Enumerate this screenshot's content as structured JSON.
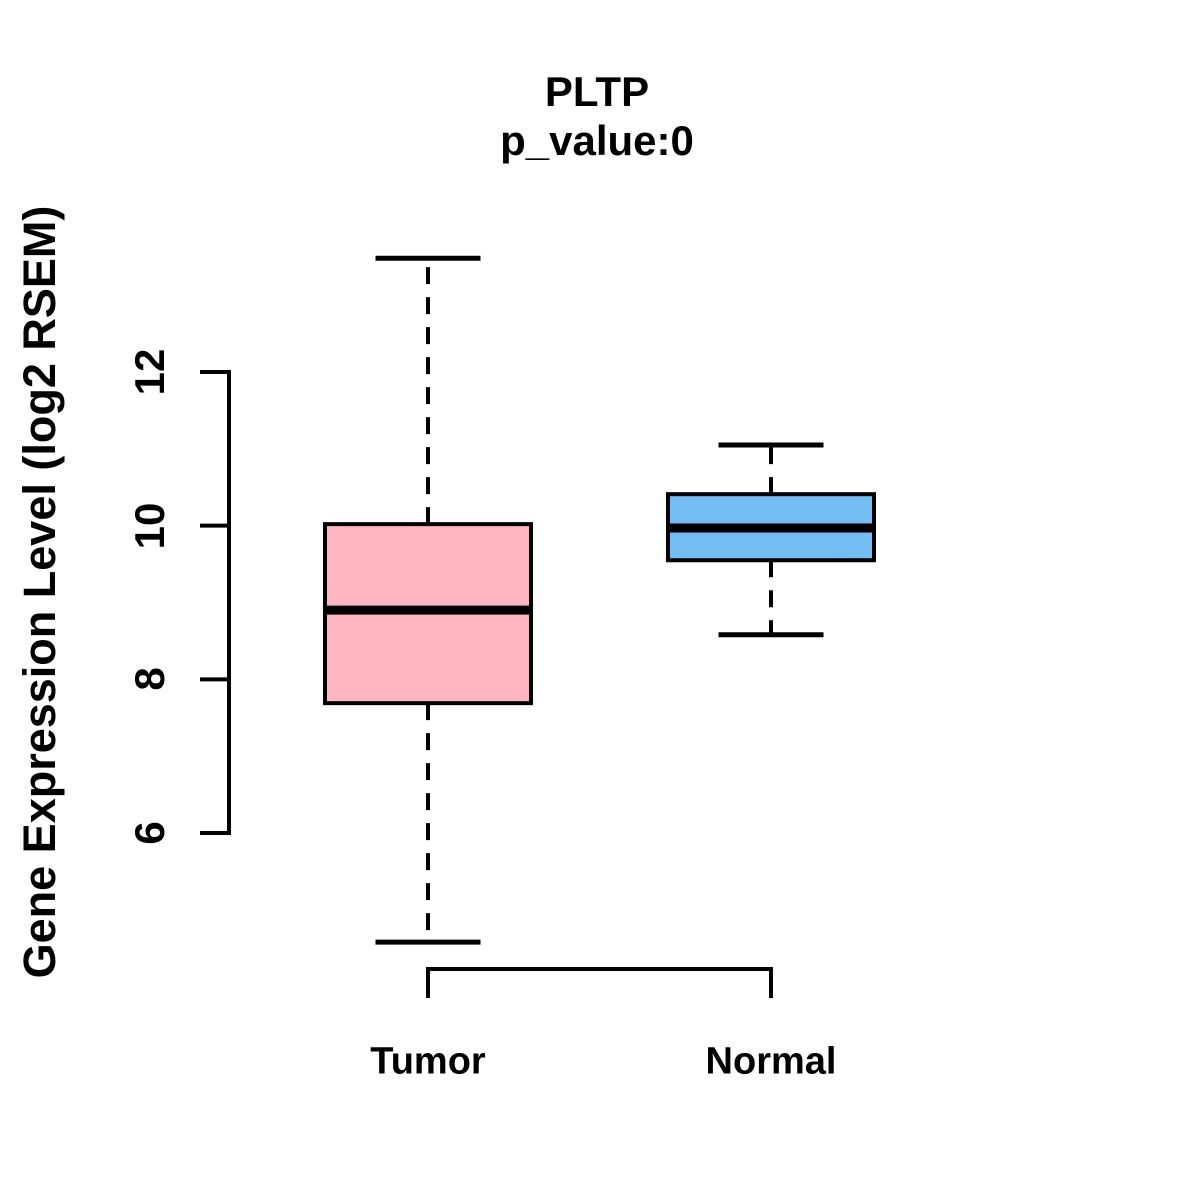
{
  "chart_data": {
    "type": "boxplot",
    "title": "PLTP",
    "subtitle": "p_value:0",
    "ylabel": "Gene Expression Level (log2 RSEM)",
    "xlabel": "",
    "categories": [
      "Tumor",
      "Normal"
    ],
    "y_ticks": [
      6,
      8,
      10,
      12
    ],
    "y_axis_range": [
      6,
      12
    ],
    "grid": false,
    "legend": "none",
    "series": [
      {
        "name": "Tumor",
        "whisker_low": 4.58,
        "q1": 7.69,
        "median": 8.9,
        "q3": 10.02,
        "whisker_high": 13.48,
        "outliers": [],
        "fill": "#FFB6C1"
      },
      {
        "name": "Normal",
        "whisker_low": 8.58,
        "q1": 9.55,
        "median": 9.97,
        "q3": 10.41,
        "whisker_high": 11.05,
        "outliers": [],
        "fill": "#74BDF2"
      }
    ],
    "colors": {
      "box_border": "#000000",
      "median_line": "#000000",
      "axis": "#000000",
      "text": "#000000",
      "background": "#FFFFFF"
    }
  }
}
